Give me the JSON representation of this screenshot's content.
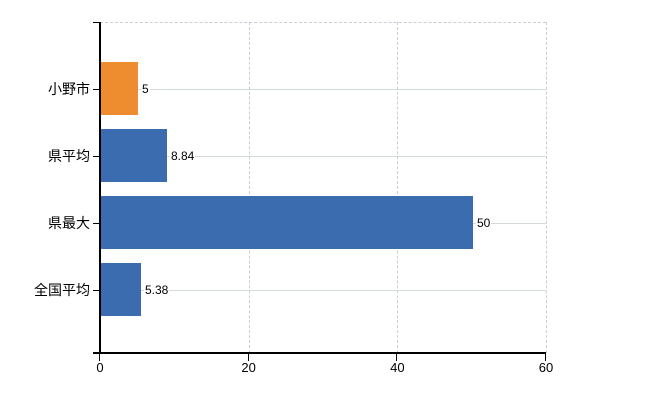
{
  "chart_data": {
    "type": "bar",
    "orientation": "horizontal",
    "title": "",
    "xlabel": "",
    "ylabel": "",
    "categories": [
      "小野市",
      "県平均",
      "県最大",
      "全国平均"
    ],
    "values": [
      5,
      8.84,
      50,
      5.38
    ],
    "value_labels": [
      "5",
      "8.84",
      "50",
      "5.38"
    ],
    "series_colors": [
      "#ee8c30",
      "#3c6cb0",
      "#3c6cb0",
      "#3c6cb0"
    ],
    "xlim": [
      0,
      60
    ],
    "x_ticks": [
      0,
      20,
      40,
      60
    ],
    "x_tick_labels": [
      "0",
      "20",
      "40",
      "60"
    ],
    "legend": "none",
    "grid": "dashed vertical value gridlines at 20/40/60, solid horizontal gridline per category"
  },
  "colors": {
    "background": "#ffffff",
    "bar_orange": "#ee8c30",
    "bar_blue": "#3c6cb0",
    "horizontal_gridline": "#d3ddd3",
    "vertical_gridline": "#ccccd6",
    "axis": "#000000",
    "text": "#000000"
  }
}
